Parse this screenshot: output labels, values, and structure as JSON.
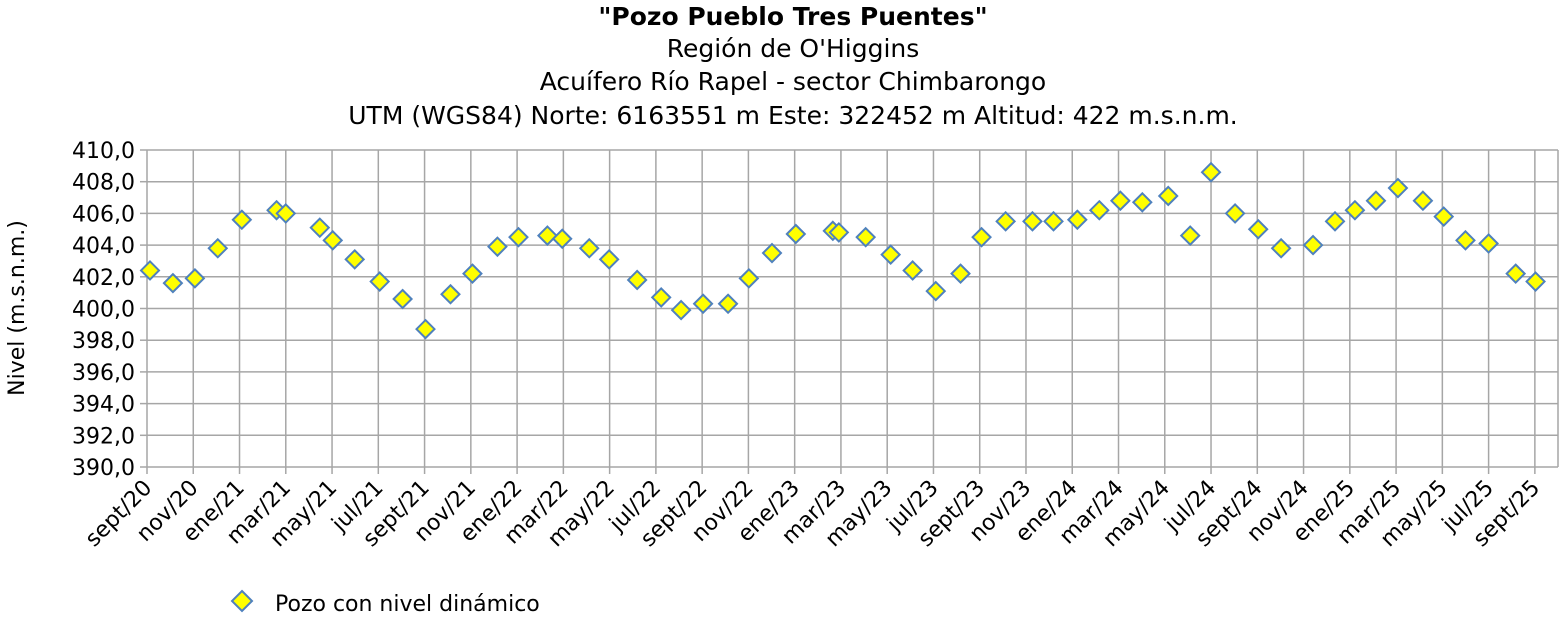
{
  "chart_data": {
    "type": "scatter",
    "title": "\"Pozo Pueblo Tres Puentes\"",
    "subtitle": [
      "Región de O'Higgins",
      "Acuífero Río Rapel - sector Chimbarongo",
      "UTM (WGS84) Norte: 6163551 m Este: 322452 m   Altitud: 422 m.s.n.m."
    ],
    "y_label": "Nivel (m.s.n.m.)",
    "grid": true,
    "xlim": [
      0,
      61
    ],
    "xticks": [
      {
        "value": 0,
        "label": "sept/20"
      },
      {
        "value": 2,
        "label": "nov/20"
      },
      {
        "value": 4,
        "label": "ene/21"
      },
      {
        "value": 6,
        "label": "mar/21"
      },
      {
        "value": 8,
        "label": "may/21"
      },
      {
        "value": 10,
        "label": "jul/21"
      },
      {
        "value": 12,
        "label": "sept/21"
      },
      {
        "value": 14,
        "label": "nov/21"
      },
      {
        "value": 16,
        "label": "ene/22"
      },
      {
        "value": 18,
        "label": "mar/22"
      },
      {
        "value": 20,
        "label": "may/22"
      },
      {
        "value": 22,
        "label": "jul/22"
      },
      {
        "value": 24,
        "label": "sept/22"
      },
      {
        "value": 26,
        "label": "nov/22"
      },
      {
        "value": 28,
        "label": "ene/23"
      },
      {
        "value": 30,
        "label": "mar/23"
      },
      {
        "value": 32,
        "label": "may/23"
      },
      {
        "value": 34,
        "label": "jul/23"
      },
      {
        "value": 36,
        "label": "sept/23"
      },
      {
        "value": 38,
        "label": "nov/23"
      },
      {
        "value": 40,
        "label": "ene/24"
      },
      {
        "value": 42,
        "label": "mar/24"
      },
      {
        "value": 44,
        "label": "may/24"
      },
      {
        "value": 46,
        "label": "jul/24"
      },
      {
        "value": 48,
        "label": "sept/24"
      },
      {
        "value": 50,
        "label": "nov/24"
      },
      {
        "value": 52,
        "label": "ene/25"
      },
      {
        "value": 54,
        "label": "mar/25"
      },
      {
        "value": 56,
        "label": "may/25"
      },
      {
        "value": 58,
        "label": "jul/25"
      },
      {
        "value": 60,
        "label": "sept/25"
      }
    ],
    "ylim": [
      390,
      410
    ],
    "yticks": [
      {
        "value": 390,
        "label": "390,0"
      },
      {
        "value": 392,
        "label": "392,0"
      },
      {
        "value": 394,
        "label": "394,0"
      },
      {
        "value": 396,
        "label": "396,0"
      },
      {
        "value": 398,
        "label": "398,0"
      },
      {
        "value": 400,
        "label": "400,0"
      },
      {
        "value": 402,
        "label": "402,0"
      },
      {
        "value": 404,
        "label": "404,0"
      },
      {
        "value": 406,
        "label": "406,0"
      },
      {
        "value": 408,
        "label": "408,0"
      },
      {
        "value": 410,
        "label": "410,0"
      }
    ],
    "series": [
      {
        "name": "Pozo con nivel dinámico",
        "color": "#ffff00",
        "edge_color": "#4f81bd",
        "x": [
          0.13,
          1.12,
          2.07,
          3.06,
          4.1,
          5.6,
          6.0,
          7.47,
          8.03,
          8.98,
          10.06,
          11.05,
          12.04,
          13.12,
          14.07,
          15.15,
          16.06,
          17.31,
          17.95,
          19.12,
          19.98,
          21.19,
          22.23,
          23.09,
          24.04,
          25.12,
          26.02,
          27.02,
          28.05,
          29.65,
          29.91,
          31.07,
          32.15,
          33.1,
          34.1,
          35.17,
          36.08,
          37.12,
          38.28,
          39.19,
          40.22,
          41.17,
          42.08,
          43.03,
          44.15,
          45.1,
          46.0,
          47.04,
          48.04,
          49.03,
          50.41,
          51.36,
          52.22,
          53.13,
          54.08,
          55.16,
          56.06,
          57.0,
          58.0,
          59.17,
          60.03
        ],
        "values": [
          402.4,
          401.6,
          401.9,
          403.8,
          405.6,
          406.2,
          406.0,
          405.1,
          404.3,
          403.1,
          401.7,
          400.6,
          398.7,
          400.9,
          402.2,
          403.9,
          404.5,
          404.6,
          404.4,
          403.8,
          403.1,
          401.8,
          400.7,
          399.9,
          400.3,
          400.3,
          401.9,
          403.5,
          404.7,
          404.9,
          404.8,
          404.5,
          403.4,
          402.4,
          401.1,
          402.2,
          404.5,
          405.5,
          405.5,
          405.5,
          405.6,
          406.2,
          406.8,
          406.7,
          407.1,
          404.6,
          408.6,
          406.0,
          405.0,
          403.8,
          404.0,
          405.5,
          406.2,
          406.8,
          407.6,
          406.8,
          405.8,
          404.3,
          404.1,
          402.2,
          401.7
        ]
      }
    ]
  }
}
